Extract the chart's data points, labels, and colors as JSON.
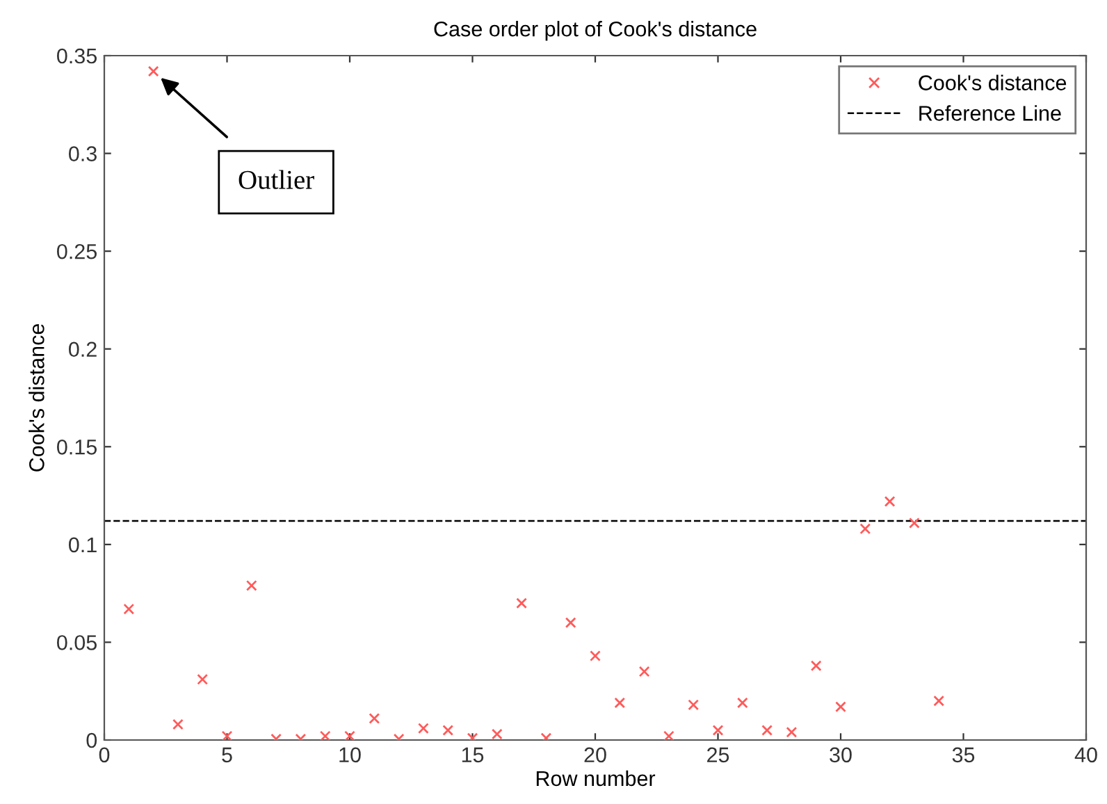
{
  "chart_data": {
    "type": "scatter",
    "title": "Case order plot of Cook's distance",
    "xlabel": "Row number",
    "ylabel": "Cook's distance",
    "x": [
      1,
      2,
      3,
      4,
      5,
      6,
      7,
      8,
      9,
      10,
      11,
      12,
      13,
      14,
      15,
      16,
      17,
      18,
      19,
      20,
      21,
      22,
      23,
      24,
      25,
      26,
      27,
      28,
      29,
      30,
      31,
      32,
      33,
      34
    ],
    "series": [
      {
        "name": "Cook's distance",
        "color": "#ff5a5a",
        "marker": "cross",
        "values": [
          0.067,
          0.342,
          0.008,
          0.031,
          0.002,
          0.079,
          0.0005,
          0.0005,
          0.002,
          0.002,
          0.011,
          0.0005,
          0.006,
          0.005,
          0.001,
          0.003,
          0.07,
          0.001,
          0.06,
          0.043,
          0.019,
          0.035,
          0.002,
          0.018,
          0.005,
          0.019,
          0.005,
          0.004,
          0.038,
          0.017,
          0.108,
          0.122,
          0.111,
          0.02
        ]
      }
    ],
    "ref_lines": [
      {
        "axis": "y",
        "value": 0.112,
        "label": "Reference Line",
        "color": "#000000",
        "line_style": "dashed"
      }
    ],
    "annotations": [
      "Outlier"
    ],
    "xlim": [
      0,
      40
    ],
    "xticks": [
      0,
      5,
      10,
      15,
      20,
      25,
      30,
      35,
      40
    ],
    "ylim": [
      0,
      0.35
    ],
    "yticks": [
      0,
      0.05,
      0.1,
      0.15,
      0.2,
      0.25,
      0.3,
      0.35
    ],
    "grid": false,
    "legend": "top right"
  }
}
